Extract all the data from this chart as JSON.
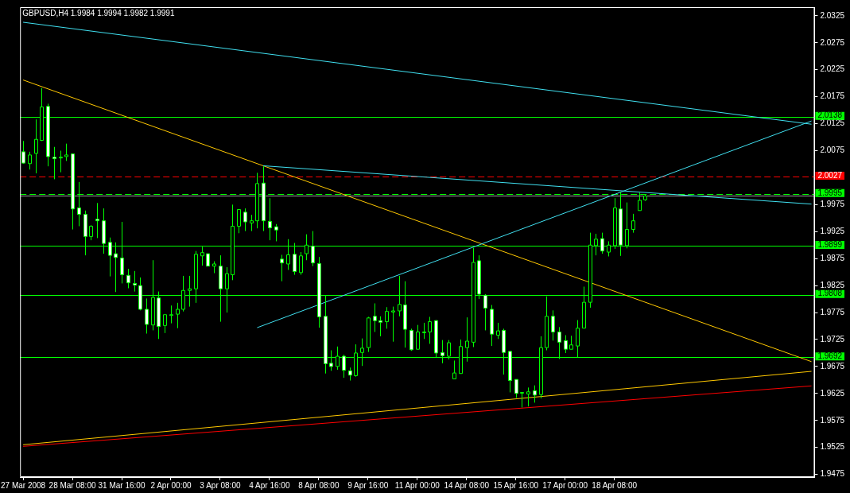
{
  "chart_data": {
    "type": "candlestick",
    "title": "GBPUSD,H4 1.9984 1.9994 1.9982 1.9991",
    "color": "#00ff00",
    "categories": [
      "27 Mar 2008",
      null,
      null,
      null,
      null,
      null,
      null,
      null,
      "28 Mar 08:00",
      null,
      null,
      null,
      null,
      null,
      null,
      null,
      "31 Mar 16:00",
      null,
      null,
      null,
      null,
      null,
      null,
      null,
      "2 Apr 00:00",
      null,
      null,
      null,
      null,
      null,
      null,
      null,
      "3 Apr 08:00",
      null,
      null,
      null,
      null,
      null,
      null,
      null,
      "4 Apr 16:00",
      null,
      null,
      null,
      null,
      null,
      null,
      null,
      "8 Apr 08:00",
      null,
      null,
      null,
      null,
      null,
      null,
      null,
      "9 Apr 16:00",
      null,
      null,
      null,
      null,
      null,
      null,
      null,
      "11 Apr 00:00",
      null,
      null,
      null,
      null,
      null,
      null,
      null,
      "14 Apr 08:00",
      null,
      null,
      null,
      null,
      null,
      null,
      null,
      "15 Apr 16:00",
      null,
      null,
      null,
      null,
      null,
      null,
      null,
      "17 Apr 00:00",
      null,
      null,
      null,
      null,
      null,
      null,
      null,
      "18 Apr 08:00",
      null,
      null,
      null,
      null,
      null,
      null,
      null,
      null,
      null,
      null,
      null,
      null,
      null,
      null,
      null,
      null,
      null,
      null,
      null,
      null,
      null,
      null,
      null,
      null,
      null,
      null,
      null,
      null,
      null,
      null,
      null,
      null
    ],
    "ohlc": [
      [
        2.0073,
        2.0093,
        2.0051,
        2.0052
      ],
      [
        2.0051,
        2.0073,
        2.004,
        2.0067
      ],
      [
        2.007,
        2.0133,
        2.0033,
        2.0096
      ],
      [
        2.0094,
        2.0191,
        2.0093,
        2.0156
      ],
      [
        2.0157,
        2.0162,
        2.0046,
        2.0064
      ],
      [
        2.0063,
        2.0082,
        2.0022,
        2.006
      ],
      [
        2.0062,
        2.0075,
        2.0035,
        2.0063
      ],
      [
        2.0064,
        2.0088,
        2.0056,
        2.0067
      ],
      [
        2.0069,
        2.007,
        1.9929,
        1.9967
      ],
      [
        1.9969,
        2.0017,
        1.9935,
        1.9957
      ],
      [
        1.9957,
        1.9964,
        1.9881,
        1.9916
      ],
      [
        1.9916,
        1.9937,
        1.9909,
        1.9935
      ],
      [
        1.9948,
        1.9978,
        1.9913,
        1.9945
      ],
      [
        1.9945,
        1.9968,
        1.9884,
        1.9903
      ],
      [
        1.9905,
        1.9914,
        1.9842,
        1.9881
      ],
      [
        1.9884,
        1.9905,
        1.9813,
        1.9877
      ],
      [
        1.9876,
        1.9943,
        1.9829,
        1.9845
      ],
      [
        1.9844,
        1.9856,
        1.982,
        1.983
      ],
      [
        1.9829,
        1.9852,
        1.9814,
        1.9826
      ],
      [
        1.9825,
        1.984,
        1.9779,
        1.9781
      ],
      [
        1.9781,
        1.9801,
        1.9736,
        1.9753
      ],
      [
        1.9752,
        1.9872,
        1.9742,
        1.9803
      ],
      [
        1.9802,
        1.9814,
        1.9726,
        1.9749
      ],
      [
        1.9751,
        1.9771,
        1.9737,
        1.9771
      ],
      [
        1.9771,
        1.9788,
        1.9755,
        1.9771
      ],
      [
        1.9772,
        1.9793,
        1.9746,
        1.9781
      ],
      [
        1.9781,
        1.9843,
        1.9777,
        1.9816
      ],
      [
        1.9816,
        1.9843,
        1.9786,
        1.9819
      ],
      [
        1.9819,
        1.9889,
        1.9793,
        1.9883
      ],
      [
        1.988,
        1.9897,
        1.9862,
        1.9886
      ],
      [
        1.9884,
        1.9884,
        1.9861,
        1.9861
      ],
      [
        1.9861,
        1.987,
        1.9848,
        1.9865
      ],
      [
        1.9861,
        1.9881,
        1.9758,
        1.9819
      ],
      [
        1.9819,
        1.9859,
        1.9775,
        1.9847
      ],
      [
        1.9845,
        1.9975,
        1.9835,
        1.9935
      ],
      [
        1.9935,
        1.9966,
        1.9922,
        1.9966
      ],
      [
        1.9961,
        1.9968,
        1.9926,
        1.9943
      ],
      [
        1.9941,
        1.9956,
        1.9926,
        1.9945
      ],
      [
        1.9945,
        2.0034,
        1.9931,
        2.0014
      ],
      [
        2.0015,
        2.0046,
        1.9926,
        1.9945
      ],
      [
        1.9944,
        1.9987,
        1.9909,
        1.9932
      ],
      [
        1.9934,
        1.9939,
        1.9907,
        1.9928
      ],
      [
        1.9874,
        1.9882,
        1.9833,
        1.9867
      ],
      [
        1.9865,
        1.9911,
        1.9854,
        1.9882
      ],
      [
        1.9883,
        1.9904,
        1.9845,
        1.9851
      ],
      [
        1.9849,
        1.9887,
        1.9845,
        1.988
      ],
      [
        1.9884,
        1.992,
        1.9872,
        1.99
      ],
      [
        1.9898,
        1.9926,
        1.9861,
        1.9867
      ],
      [
        1.9866,
        1.9878,
        1.9747,
        1.9767
      ],
      [
        1.9768,
        1.9807,
        1.9662,
        1.968
      ],
      [
        1.9681,
        1.9705,
        1.9667,
        1.9675
      ],
      [
        1.9675,
        1.9712,
        1.9669,
        1.9694
      ],
      [
        1.9694,
        1.9697,
        1.9654,
        1.9668
      ],
      [
        1.9667,
        1.9673,
        1.9649,
        1.9659
      ],
      [
        1.9658,
        1.9716,
        1.9656,
        1.97
      ],
      [
        1.9701,
        1.9727,
        1.9676,
        1.9709
      ],
      [
        1.971,
        1.9767,
        1.9702,
        1.9765
      ],
      [
        1.9768,
        1.9792,
        1.9739,
        1.976
      ],
      [
        1.976,
        1.9768,
        1.9731,
        1.9757
      ],
      [
        1.9758,
        1.9785,
        1.9745,
        1.9777
      ],
      [
        1.9776,
        1.9786,
        1.9721,
        1.9778
      ],
      [
        1.9778,
        1.9843,
        1.9768,
        1.979
      ],
      [
        1.9789,
        1.9833,
        1.971,
        1.9744
      ],
      [
        1.9742,
        1.9745,
        1.9704,
        1.9706
      ],
      [
        1.9707,
        1.9752,
        1.9707,
        1.9739
      ],
      [
        1.9739,
        1.9756,
        1.9726,
        1.9739
      ],
      [
        1.9739,
        1.9767,
        1.9717,
        1.9758
      ],
      [
        1.976,
        1.9761,
        1.9692,
        1.97
      ],
      [
        1.9701,
        1.9724,
        1.9681,
        1.9695
      ],
      [
        1.9694,
        1.9724,
        1.9688,
        1.9719
      ],
      [
        1.9652,
        1.9686,
        1.9652,
        1.9663
      ],
      [
        1.9662,
        1.9725,
        1.9662,
        1.9712
      ],
      [
        1.971,
        1.9766,
        1.9684,
        1.9722
      ],
      [
        1.972,
        1.9895,
        1.9711,
        1.9868
      ],
      [
        1.9871,
        1.9881,
        1.98,
        1.9809
      ],
      [
        1.9807,
        1.9809,
        1.9742,
        1.9783
      ],
      [
        1.9781,
        1.9789,
        1.9713,
        1.9735
      ],
      [
        1.9733,
        1.9756,
        1.9726,
        1.9741
      ],
      [
        1.9742,
        1.9745,
        1.966,
        1.9701
      ],
      [
        1.9703,
        1.9703,
        1.9627,
        1.9649
      ],
      [
        1.9651,
        1.9651,
        1.9617,
        1.9625
      ],
      [
        1.9627,
        1.9627,
        1.9599,
        1.9627
      ],
      [
        1.9624,
        1.9636,
        1.9601,
        1.9628
      ],
      [
        1.963,
        1.964,
        1.9608,
        1.9622
      ],
      [
        1.9623,
        1.9731,
        1.9616,
        1.971
      ],
      [
        1.971,
        1.9805,
        1.9705,
        1.9768
      ],
      [
        1.9768,
        1.9779,
        1.9723,
        1.9739
      ],
      [
        1.9739,
        1.9748,
        1.9689,
        1.972
      ],
      [
        1.9723,
        1.9733,
        1.97,
        1.9707
      ],
      [
        1.9707,
        1.9732,
        1.9707,
        1.9715
      ],
      [
        1.9713,
        1.9761,
        1.9691,
        1.9746
      ],
      [
        1.9746,
        1.9823,
        1.9746,
        1.9794
      ],
      [
        1.9794,
        1.9923,
        1.9784,
        1.99
      ],
      [
        1.9899,
        1.9921,
        1.9881,
        1.9911
      ],
      [
        1.9912,
        1.9923,
        1.9884,
        1.9889
      ],
      [
        1.9887,
        1.9907,
        1.9879,
        1.99
      ],
      [
        1.9899,
        1.9987,
        1.9893,
        1.9969
      ],
      [
        1.9967,
        1.9998,
        1.988,
        1.99
      ],
      [
        1.9899,
        1.9979,
        1.9894,
        1.9929
      ],
      [
        1.9929,
        1.9958,
        1.9923,
        1.9945
      ],
      [
        1.9964,
        1.9997,
        1.9964,
        1.9983
      ],
      [
        1.9984,
        1.9994,
        1.9982,
        1.9991
      ],
      null,
      null,
      null,
      null,
      null,
      null,
      null,
      null,
      null,
      null,
      null,
      null,
      null,
      null,
      null,
      null,
      null,
      null,
      null,
      null,
      null,
      null,
      null,
      null,
      null,
      null,
      null
    ],
    "series": [
      {
        "type": "line",
        "color": "#40e0f0",
        "values": [
          2.0313,
          null,
          null,
          null,
          null,
          null,
          null,
          null,
          null,
          null,
          null,
          null,
          null,
          null,
          null,
          null,
          null,
          null,
          null,
          null,
          null,
          null,
          null,
          null,
          null,
          null,
          null,
          null,
          null,
          null,
          null,
          null,
          null,
          null,
          null,
          null,
          null,
          null,
          null,
          null,
          null,
          null,
          null,
          null,
          null,
          null,
          null,
          null,
          null,
          null,
          null,
          null,
          null,
          null,
          null,
          null,
          null,
          null,
          null,
          null,
          null,
          null,
          null,
          null,
          null,
          null,
          null,
          null,
          null,
          null,
          null,
          null,
          null,
          null,
          null,
          null,
          null,
          null,
          null,
          null,
          null,
          null,
          null,
          null,
          null,
          null,
          null,
          null,
          null,
          null,
          null,
          null,
          null,
          null,
          null,
          null,
          null,
          null,
          null,
          null,
          null,
          null,
          null,
          null,
          null,
          null,
          null,
          null,
          null,
          null,
          null,
          null,
          null,
          null,
          null,
          null,
          null,
          null,
          null,
          null,
          null,
          null,
          null,
          null,
          null,
          null,
          null,
          null,
          2.0124
        ]
      },
      {
        "type": "line",
        "color": "#40e0f0",
        "values": [
          null,
          null,
          null,
          null,
          null,
          null,
          null,
          null,
          null,
          null,
          null,
          null,
          null,
          null,
          null,
          null,
          null,
          null,
          null,
          null,
          null,
          null,
          null,
          null,
          null,
          null,
          null,
          null,
          null,
          null,
          null,
          null,
          null,
          null,
          null,
          null,
          null,
          null,
          1.9747,
          null,
          null,
          null,
          null,
          null,
          null,
          null,
          null,
          null,
          null,
          null,
          null,
          null,
          null,
          null,
          null,
          null,
          null,
          null,
          null,
          null,
          null,
          null,
          null,
          null,
          null,
          null,
          null,
          null,
          null,
          null,
          null,
          null,
          null,
          null,
          null,
          null,
          null,
          null,
          null,
          null,
          null,
          null,
          null,
          null,
          null,
          null,
          null,
          null,
          null,
          null,
          null,
          null,
          null,
          null,
          null,
          null,
          null,
          null,
          null,
          null,
          null,
          null,
          null,
          null,
          null,
          null,
          null,
          null,
          null,
          null,
          null,
          null,
          null,
          null,
          null,
          null,
          null,
          null,
          null,
          null,
          null,
          null,
          null,
          null,
          null,
          null,
          null,
          null,
          2.013
        ]
      },
      {
        "type": "line",
        "color": "#40e0f0",
        "values": [
          null,
          null,
          null,
          null,
          null,
          null,
          null,
          null,
          null,
          null,
          null,
          null,
          null,
          null,
          null,
          null,
          null,
          null,
          null,
          null,
          null,
          null,
          null,
          null,
          null,
          null,
          null,
          null,
          null,
          null,
          null,
          null,
          null,
          null,
          null,
          null,
          null,
          null,
          null,
          2.0047,
          null,
          null,
          null,
          null,
          null,
          null,
          null,
          null,
          null,
          null,
          null,
          null,
          null,
          null,
          null,
          null,
          null,
          null,
          null,
          null,
          null,
          null,
          null,
          null,
          null,
          null,
          null,
          null,
          null,
          null,
          null,
          null,
          null,
          null,
          null,
          null,
          null,
          null,
          null,
          null,
          null,
          null,
          null,
          null,
          null,
          null,
          null,
          null,
          null,
          null,
          null,
          null,
          null,
          null,
          null,
          null,
          null,
          null,
          null,
          null,
          null,
          null,
          null,
          null,
          null,
          null,
          null,
          null,
          null,
          null,
          null,
          null,
          null,
          null,
          null,
          null,
          null,
          null,
          null,
          null,
          null,
          null,
          null,
          null,
          null,
          null,
          null,
          null,
          1.9976
        ]
      },
      {
        "type": "line",
        "color": "#ffc800",
        "values": [
          2.0206,
          null,
          null,
          null,
          null,
          null,
          null,
          null,
          null,
          null,
          null,
          null,
          null,
          null,
          null,
          null,
          null,
          null,
          null,
          null,
          null,
          null,
          null,
          null,
          null,
          null,
          null,
          null,
          null,
          null,
          null,
          null,
          null,
          null,
          null,
          null,
          null,
          null,
          null,
          null,
          null,
          null,
          null,
          null,
          null,
          null,
          null,
          null,
          null,
          null,
          null,
          null,
          null,
          null,
          null,
          null,
          null,
          null,
          null,
          null,
          null,
          null,
          null,
          null,
          null,
          null,
          null,
          null,
          null,
          null,
          null,
          null,
          null,
          null,
          null,
          null,
          null,
          null,
          null,
          null,
          null,
          null,
          null,
          null,
          null,
          null,
          null,
          null,
          null,
          null,
          null,
          null,
          null,
          null,
          null,
          null,
          null,
          null,
          null,
          null,
          null,
          null,
          null,
          null,
          null,
          null,
          null,
          null,
          null,
          null,
          null,
          null,
          null,
          null,
          null,
          null,
          null,
          null,
          null,
          null,
          null,
          null,
          null,
          null,
          null,
          null,
          null,
          null,
          1.9684
        ]
      },
      {
        "type": "line",
        "color": "#ffc800",
        "values": [
          1.953,
          null,
          null,
          null,
          null,
          null,
          null,
          null,
          null,
          null,
          null,
          null,
          null,
          null,
          null,
          null,
          null,
          null,
          null,
          null,
          null,
          null,
          null,
          null,
          null,
          null,
          null,
          null,
          null,
          null,
          null,
          null,
          null,
          null,
          null,
          null,
          null,
          null,
          null,
          null,
          null,
          null,
          null,
          null,
          null,
          null,
          null,
          null,
          null,
          null,
          null,
          null,
          null,
          null,
          null,
          null,
          null,
          null,
          null,
          null,
          null,
          null,
          null,
          null,
          null,
          null,
          null,
          null,
          null,
          null,
          null,
          null,
          null,
          null,
          null,
          null,
          null,
          null,
          null,
          null,
          null,
          null,
          null,
          null,
          null,
          null,
          null,
          null,
          null,
          null,
          null,
          null,
          null,
          null,
          null,
          null,
          null,
          null,
          null,
          null,
          null,
          null,
          null,
          null,
          null,
          null,
          null,
          null,
          null,
          null,
          null,
          null,
          null,
          null,
          null,
          null,
          null,
          null,
          null,
          null,
          null,
          null,
          null,
          null,
          null,
          null,
          null,
          null,
          1.9666
        ]
      },
      {
        "type": "line",
        "color": "#ff0000",
        "values": [
          1.9527,
          null,
          null,
          null,
          null,
          null,
          null,
          null,
          null,
          null,
          null,
          null,
          null,
          null,
          null,
          null,
          null,
          null,
          null,
          null,
          null,
          null,
          null,
          null,
          null,
          null,
          null,
          null,
          null,
          null,
          null,
          null,
          null,
          null,
          null,
          null,
          null,
          null,
          null,
          null,
          null,
          null,
          null,
          null,
          null,
          null,
          null,
          null,
          null,
          null,
          null,
          null,
          null,
          null,
          null,
          null,
          null,
          null,
          null,
          null,
          null,
          null,
          null,
          null,
          null,
          null,
          null,
          null,
          null,
          null,
          null,
          null,
          null,
          null,
          null,
          null,
          null,
          null,
          null,
          null,
          null,
          null,
          null,
          null,
          null,
          null,
          null,
          null,
          null,
          null,
          null,
          null,
          null,
          null,
          null,
          null,
          null,
          null,
          null,
          null,
          null,
          null,
          null,
          null,
          null,
          null,
          null,
          null,
          null,
          null,
          null,
          null,
          null,
          null,
          null,
          null,
          null,
          null,
          null,
          null,
          null,
          null,
          null,
          null,
          null,
          null,
          null,
          null,
          1.9639
        ]
      }
    ],
    "ref_lines": [
      {
        "axis": "y",
        "value": 2.0138,
        "label": "2.0138",
        "color": "#00ff00",
        "line_style": "solid"
      },
      {
        "axis": "y",
        "value": 2.0027,
        "label": "2.0027",
        "color": "#ff0000",
        "line_style": "dashed"
      },
      {
        "axis": "y",
        "value": 1.9995,
        "label": "1.9995",
        "color": "#00ff00",
        "line_style": "dashed"
      },
      {
        "axis": "y",
        "value": 1.9991,
        "color": "#a0a0a0",
        "line_style": "solid"
      },
      {
        "axis": "y",
        "value": 1.9899,
        "label": "1.9899",
        "color": "#00ff00",
        "line_style": "solid"
      },
      {
        "axis": "y",
        "value": 1.9808,
        "label": "1.9808",
        "color": "#00ff00",
        "line_style": "solid"
      },
      {
        "axis": "y",
        "value": 1.9692,
        "label": "1.9692",
        "color": "#00ff00",
        "line_style": "solid"
      }
    ],
    "ylim": [
      1.947,
      2.0341
    ],
    "yticks": [
      1.9475,
      1.9525,
      1.9575,
      1.9625,
      1.9675,
      1.9725,
      1.9775,
      1.9825,
      1.9875,
      1.9925,
      1.9975,
      2.0075,
      2.0125,
      2.0175,
      2.0225,
      2.0275,
      2.0325
    ]
  }
}
